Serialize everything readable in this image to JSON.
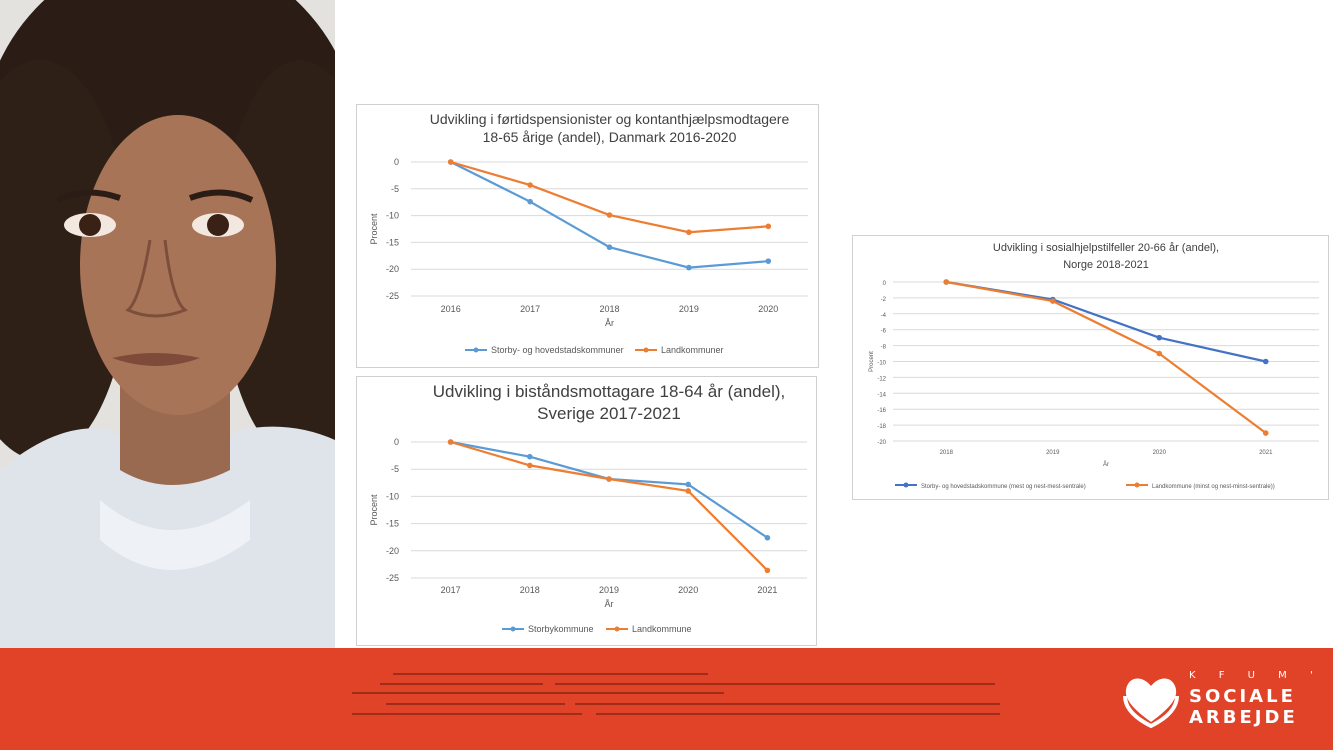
{
  "page": {
    "background": "#ffffff",
    "footer_color": "#e04327"
  },
  "photo": {
    "subject": "portrait of a young person with curly hair",
    "icon": "portrait-photo"
  },
  "logo": {
    "line1": "K F U M ' S",
    "line2": "SOCIALE",
    "line3": "ARBEJDE",
    "icon": "heart-hands-icon"
  },
  "chart_data": [
    {
      "id": "dk",
      "type": "line",
      "title_lines": [
        "Udvikling i førtidspensionister  og kontanthjælpsmodtagere",
        "18-65 årige (andel), Danmark 2016-2020"
      ],
      "xlabel": "År",
      "ylabel": "Procent",
      "categories": [
        "2016",
        "2017",
        "2018",
        "2019",
        "2020"
      ],
      "ylim": [
        -25,
        0
      ],
      "yticks": [
        0,
        -5,
        -10,
        -15,
        -20,
        -25
      ],
      "grid": true,
      "legend": "bottom",
      "series": [
        {
          "name": "Storby- og hovedstadskommuner",
          "color": "#5b9bd5",
          "values": [
            0,
            -7.4,
            -15.9,
            -19.7,
            -18.5
          ]
        },
        {
          "name": "Landkommuner",
          "color": "#ed7d31",
          "values": [
            0,
            -4.3,
            -9.9,
            -13.1,
            -12.0
          ]
        }
      ]
    },
    {
      "id": "se",
      "type": "line",
      "title_lines": [
        "Udvikling i biståndsmottagare 18-64 år (andel),",
        "Sverige 2017-2021"
      ],
      "xlabel": "År",
      "ylabel": "Procent",
      "categories": [
        "2017",
        "2018",
        "2019",
        "2020",
        "2021"
      ],
      "ylim": [
        -25,
        0
      ],
      "yticks": [
        0,
        -5,
        -10,
        -15,
        -20,
        -25
      ],
      "grid": true,
      "legend": "bottom",
      "series": [
        {
          "name": "Storbykommune",
          "color": "#5b9bd5",
          "values": [
            0,
            -2.7,
            -6.8,
            -7.8,
            -17.6
          ]
        },
        {
          "name": "Landkommune",
          "color": "#ed7d31",
          "values": [
            0,
            -4.3,
            -6.8,
            -9.0,
            -23.6
          ]
        }
      ]
    },
    {
      "id": "no",
      "type": "line",
      "title_lines": [
        "Udvikling i sosialhjelpstilfeller 20-66 år (andel),",
        "Norge 2018-2021"
      ],
      "xlabel": "År",
      "ylabel": "Procent",
      "categories": [
        "2018",
        "2019",
        "2020",
        "2021"
      ],
      "ylim": [
        -20,
        0
      ],
      "yticks": [
        0,
        -2,
        -4,
        -6,
        -8,
        -10,
        -12,
        -14,
        -16,
        -18,
        -20
      ],
      "grid": true,
      "legend": "bottom",
      "series": [
        {
          "name": "Storby- og hovedstadskommune (mest og nest-mest-sentrale)",
          "color": "#4472c4",
          "values": [
            0,
            -2.2,
            -7.0,
            -10.0
          ]
        },
        {
          "name": "Landkommune (minst og nest-minst-sentrale))",
          "color": "#ed7d31",
          "values": [
            0,
            -2.4,
            -9.0,
            -19.0
          ]
        }
      ]
    }
  ]
}
